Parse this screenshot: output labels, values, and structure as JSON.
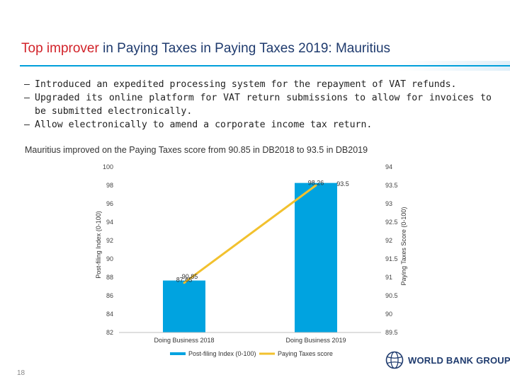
{
  "slide": {
    "title_highlight": "Top improver",
    "title_rest": " in Paying Taxes in Paying Taxes 2019: Mauritius",
    "bullets": [
      "Introduced an expedited processing system for the repayment of VAT refunds.",
      "Upgraded its online platform for VAT return submissions to allow for invoices to be submitted electronically.",
      "Allow electronically to amend a corporate income tax return."
    ],
    "bullet_marker": "–",
    "caption": "Mauritius improved on the Paying Taxes score from 90.85 in DB2018 to 93.5 in DB2019",
    "page_number": "18",
    "logo_text": "WORLD BANK GROUP",
    "logo_icon": "globe-icon",
    "colors": {
      "title": "#1f3b6e",
      "highlight": "#d2232a",
      "rule": "#009fda"
    }
  },
  "chart_data": {
    "type": "bar",
    "categories": [
      "Doing Business 2018",
      "Doing Business 2019"
    ],
    "series": [
      {
        "name": "Post-filing Index (0-100)",
        "kind": "bar",
        "axis": "left",
        "color": "#00a3e0",
        "values": [
          87.65,
          98.26
        ],
        "labels": [
          "87.65",
          "98.26"
        ]
      },
      {
        "name": "Paying Taxes score",
        "kind": "line",
        "axis": "right",
        "color": "#f2c12e",
        "values": [
          90.85,
          93.5
        ],
        "labels": [
          "90.85",
          "93.5"
        ]
      }
    ],
    "y_left": {
      "label": "Post-filing Index (0-100)",
      "min": 82,
      "max": 100,
      "ticks": [
        "100",
        "98",
        "96",
        "94",
        "92",
        "90",
        "88",
        "86",
        "84",
        "82"
      ]
    },
    "y_right": {
      "label": "Paying Taxes Score (0-100)",
      "min": 89.5,
      "max": 94,
      "ticks": [
        "94",
        "93.5",
        "93",
        "92.5",
        "92",
        "91.5",
        "91",
        "90.5",
        "90",
        "89.5"
      ]
    },
    "legend_position": "bottom",
    "grid": false
  }
}
